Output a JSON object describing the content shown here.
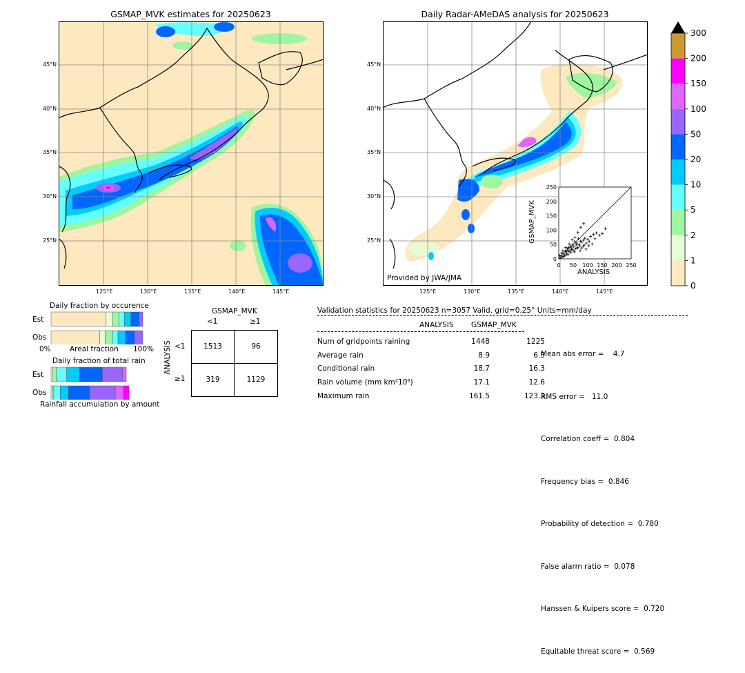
{
  "maps": {
    "left_title": "GSMAP_MVK estimates for 20250623",
    "right_title": "Daily Radar-AMeDAS analysis for 20250623",
    "lon_labels": [
      "125°E",
      "130°E",
      "135°E",
      "140°E",
      "145°E"
    ],
    "lat_labels": [
      "45°N",
      "40°N",
      "35°N",
      "30°N",
      "25°N"
    ],
    "credit": "Provided by JWA/JMA"
  },
  "colorbar": {
    "levels": [
      "0",
      "1",
      "2",
      "5",
      "10",
      "20",
      "50",
      "100",
      "150",
      "200",
      "300"
    ],
    "colors": [
      "#fde8bf",
      "#e6fcd6",
      "#a0f5a0",
      "#66ffff",
      "#00ccff",
      "#0066ff",
      "#9966ff",
      "#dd66ff",
      "#ff00ff",
      "#cc9933"
    ],
    "over_color": "#000000"
  },
  "occurrence": {
    "title": "Daily fraction by occurence",
    "row_est": "Est",
    "row_obs": "Obs",
    "axis_left": "0%",
    "axis_mid": "Areal fraction",
    "axis_right": "100%"
  },
  "total_rain": {
    "title": "Daily fraction of total rain",
    "row_est": "Est",
    "row_obs": "Obs",
    "axis_label": "Rainfall accumulation by amount"
  },
  "contingency": {
    "col_header": "GSMAP_MVK",
    "col_lt": "<1",
    "col_ge": "≥1",
    "row_header": "ANALYSIS",
    "row_lt": "<1",
    "row_ge": "≥1",
    "a": "1513",
    "b": "96",
    "c": "319",
    "d": "1129"
  },
  "validation": {
    "header": "Validation statistics for 20250623  n=3057 Valid. grid=0.25° Units=mm/day",
    "col_analysis": "ANALYSIS",
    "col_gsmap": "GSMAP_MVK",
    "rows": [
      {
        "label": "Num of gridpoints raining",
        "analysis": "1448",
        "gsmap": "1225"
      },
      {
        "label": "Average rain",
        "analysis": "8.9",
        "gsmap": "6.5"
      },
      {
        "label": "Conditional rain",
        "analysis": "18.7",
        "gsmap": "16.3"
      },
      {
        "label": "Rain volume (mm km²10⁶)",
        "analysis": "17.1",
        "gsmap": "12.6"
      },
      {
        "label": "Maximum rain",
        "analysis": "161.5",
        "gsmap": "123.3"
      }
    ],
    "scores": [
      "Mean abs error =    4.7",
      "RMS error =   11.0",
      "Correlation coeff =  0.804",
      "Frequency bias =  0.846",
      "Probability of detection =  0.780",
      "False alarm ratio =  0.078",
      "Hanssen & Kuipers score =  0.720",
      "Equitable threat score =  0.569"
    ]
  },
  "chart_data": [
    {
      "type": "scatter",
      "xlabel": "ANALYSIS",
      "ylabel": "GSMAP_MVK",
      "xlim": [
        0,
        250
      ],
      "ylim": [
        0,
        250
      ],
      "ticks": [
        "0",
        "50",
        "100",
        "150",
        "200",
        "250"
      ],
      "points": [
        [
          5,
          3
        ],
        [
          8,
          10
        ],
        [
          12,
          6
        ],
        [
          15,
          18
        ],
        [
          20,
          12
        ],
        [
          22,
          25
        ],
        [
          25,
          30
        ],
        [
          28,
          20
        ],
        [
          30,
          35
        ],
        [
          32,
          15
        ],
        [
          35,
          40
        ],
        [
          38,
          28
        ],
        [
          40,
          45
        ],
        [
          42,
          22
        ],
        [
          45,
          38
        ],
        [
          48,
          50
        ],
        [
          50,
          30
        ],
        [
          52,
          42
        ],
        [
          55,
          60
        ],
        [
          58,
          35
        ],
        [
          60,
          48
        ],
        [
          62,
          55
        ],
        [
          65,
          40
        ],
        [
          68,
          70
        ],
        [
          70,
          50
        ],
        [
          72,
          45
        ],
        [
          75,
          62
        ],
        [
          78,
          38
        ],
        [
          80,
          58
        ],
        [
          85,
          65
        ],
        [
          88,
          48
        ],
        [
          90,
          72
        ],
        [
          95,
          55
        ],
        [
          100,
          68
        ],
        [
          105,
          60
        ],
        [
          110,
          78
        ],
        [
          115,
          52
        ],
        [
          120,
          85
        ],
        [
          125,
          70
        ],
        [
          130,
          90
        ],
        [
          140,
          82
        ],
        [
          150,
          88
        ],
        [
          161,
          105
        ],
        [
          10,
          20
        ],
        [
          18,
          8
        ],
        [
          26,
          14
        ],
        [
          34,
          26
        ],
        [
          44,
          32
        ],
        [
          54,
          24
        ],
        [
          64,
          36
        ],
        [
          74,
          28
        ],
        [
          84,
          44
        ],
        [
          94,
          34
        ],
        [
          104,
          46
        ],
        [
          3,
          12
        ],
        [
          14,
          28
        ],
        [
          24,
          40
        ],
        [
          36,
          52
        ],
        [
          46,
          66
        ],
        [
          56,
          75
        ],
        [
          66,
          92
        ],
        [
          76,
          110
        ],
        [
          86,
          123
        ]
      ]
    },
    {
      "type": "bar",
      "title": "Daily fraction by occurence",
      "stacked": true,
      "categories": [
        "Est",
        "Obs"
      ],
      "series": [
        {
          "values": [
            0.6,
            0.53
          ]
        },
        {
          "values": [
            0.07,
            0.06
          ]
        },
        {
          "values": [
            0.07,
            0.08
          ]
        },
        {
          "values": [
            0.06,
            0.06
          ]
        },
        {
          "values": [
            0.07,
            0.08
          ]
        },
        {
          "values": [
            0.09,
            0.1
          ]
        },
        {
          "values": [
            0.04,
            0.09
          ]
        }
      ]
    },
    {
      "type": "bar",
      "title": "Daily fraction of total rain",
      "stacked": true,
      "categories": [
        "Est",
        "Obs"
      ],
      "series": [
        {
          "values": [
            0.02,
            0.01
          ]
        },
        {
          "values": [
            0.04,
            0.02
          ]
        },
        {
          "values": [
            0.11,
            0.07
          ]
        },
        {
          "values": [
            0.14,
            0.09
          ]
        },
        {
          "values": [
            0.25,
            0.23
          ]
        },
        {
          "values": [
            0.22,
            0.28
          ]
        },
        {
          "values": [
            0.04,
            0.09
          ]
        },
        {
          "values": [
            0.0,
            0.06
          ]
        }
      ]
    }
  ]
}
